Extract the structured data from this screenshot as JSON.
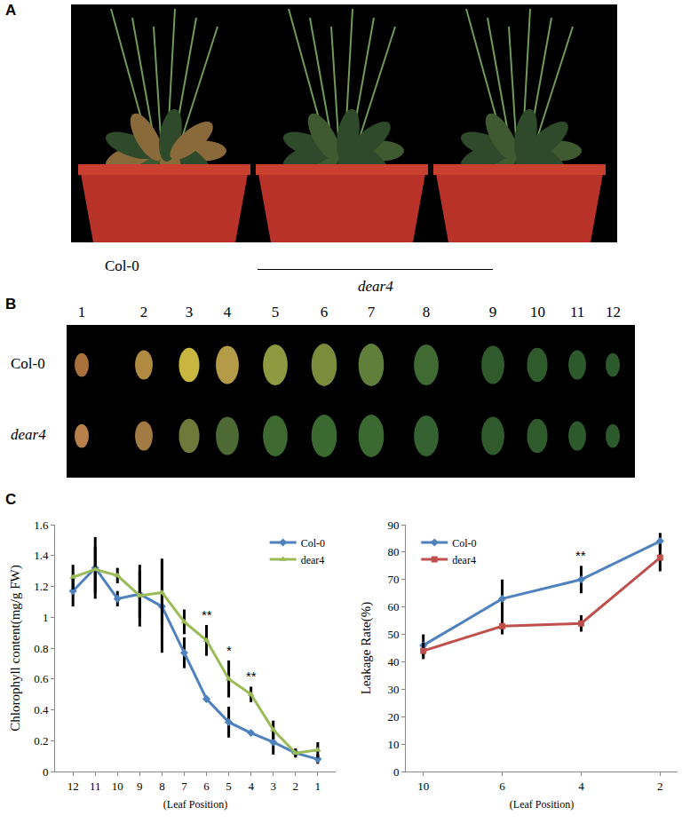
{
  "figure": {
    "A": {
      "label": "A",
      "genotypes": [
        "Col-0",
        "dear4"
      ]
    },
    "B": {
      "label": "B",
      "leaf_numbers": [
        "1",
        "2",
        "3",
        "4",
        "5",
        "6",
        "7",
        "8",
        "9",
        "10",
        "11",
        "12"
      ],
      "rows": [
        "Col-0",
        "dear4"
      ]
    },
    "C": {
      "label": "C"
    }
  },
  "chart_data": [
    {
      "type": "line",
      "y_label": "Chlorophyll content(mg/g FW)",
      "x_label": "(Leaf Position)",
      "categories": [
        "12",
        "11",
        "10",
        "9",
        "8",
        "7",
        "6",
        "5",
        "4",
        "3",
        "2",
        "1"
      ],
      "series": [
        {
          "name": "Col-0",
          "color": "#4f81bd",
          "marker": "diamond",
          "values": [
            1.17,
            1.32,
            1.12,
            1.15,
            1.07,
            0.77,
            0.47,
            0.32,
            0.25,
            0.19,
            0.12,
            0.08
          ],
          "errors": [
            0.1,
            0.2,
            0.05,
            0.15,
            0.3,
            0.1,
            0.02,
            0.1,
            0.01,
            0.08,
            0.02,
            0.03
          ]
        },
        {
          "name": "dear4",
          "color": "#9bbb59",
          "marker": "triangle-up",
          "values": [
            1.26,
            1.31,
            1.27,
            1.14,
            1.16,
            0.97,
            0.85,
            0.6,
            0.5,
            0.27,
            0.12,
            0.14
          ],
          "errors": [
            0.08,
            0.15,
            0.05,
            0.2,
            0.22,
            0.08,
            0.1,
            0.12,
            0.05,
            0.06,
            0.03,
            0.05
          ]
        }
      ],
      "ylim": [
        0,
        1.6
      ],
      "yticks": [
        0,
        0.2,
        0.4,
        0.6,
        0.8,
        1,
        1.2,
        1.4,
        1.6
      ],
      "grid": false,
      "legend": "upper right",
      "annotations": [
        {
          "category": "6",
          "text": "**"
        },
        {
          "category": "5",
          "text": "*"
        },
        {
          "category": "4",
          "text": "**"
        }
      ]
    },
    {
      "type": "line",
      "y_label": "Leakage Rate(%)",
      "x_label": "(Leaf Position)",
      "categories": [
        "10",
        "6",
        "4",
        "2"
      ],
      "series": [
        {
          "name": "Col-0",
          "color": "#4f81bd",
          "marker": "diamond",
          "values": [
            46,
            63,
            70,
            84
          ],
          "errors": [
            4,
            7,
            5,
            3
          ]
        },
        {
          "name": "dear4",
          "color": "#c0504d",
          "marker": "square",
          "values": [
            44,
            53,
            54,
            78
          ],
          "errors": [
            3,
            3,
            3,
            5
          ]
        }
      ],
      "ylim": [
        0,
        90
      ],
      "yticks": [
        0,
        10,
        20,
        30,
        40,
        50,
        60,
        70,
        80,
        90
      ],
      "grid": false,
      "legend": "upper left",
      "annotations": [
        {
          "category": "4",
          "text": "**"
        }
      ]
    }
  ]
}
